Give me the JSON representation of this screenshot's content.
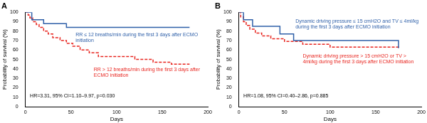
{
  "chart_data": [
    {
      "type": "line",
      "title": "A",
      "x_label": "Days",
      "y_label": "Probability of survival (%)",
      "xlim": [
        0,
        200
      ],
      "xticks": [
        0,
        50,
        100,
        150,
        200
      ],
      "ylim": [
        0,
        100
      ],
      "yticks": [
        0,
        10,
        20,
        30,
        40,
        50,
        60,
        70,
        80,
        90,
        100
      ],
      "grid": false,
      "annotations": [
        "HR=3.31, 95% CI=1.10–9.97, p=0.030"
      ],
      "series": [
        {
          "name": "RR ≤ 12 breaths/min during the first 3 days after ECMO initiation",
          "color": "#2e5fa8",
          "line_style": "solid",
          "x": [
            0,
            7,
            20,
            45,
            180
          ],
          "values": [
            100,
            92,
            88,
            84,
            84
          ]
        },
        {
          "name": "RR > 12 breaths/min during the first 3 days after ECMO initiation",
          "color": "#e8251f",
          "line_style": "dashed",
          "x": [
            0,
            3,
            5,
            8,
            12,
            15,
            20,
            25,
            30,
            38,
            45,
            52,
            60,
            70,
            80,
            100,
            120,
            140,
            160,
            180
          ],
          "values": [
            100,
            97,
            94,
            90,
            87,
            84,
            80,
            77,
            73,
            70,
            67,
            64,
            60,
            57,
            53,
            53,
            50,
            47,
            45,
            45
          ]
        }
      ]
    },
    {
      "type": "line",
      "title": "B",
      "x_label": "Days",
      "y_label": "Probability of survival (%)",
      "xlim": [
        0,
        200
      ],
      "xticks": [
        0,
        50,
        100,
        150,
        200
      ],
      "ylim": [
        0,
        100
      ],
      "yticks": [
        0,
        10,
        20,
        30,
        40,
        50,
        60,
        70,
        80,
        90,
        100
      ],
      "grid": false,
      "annotations": [
        "HR=1.08, 95% CI=0.40–2.86, p=0.885"
      ],
      "series": [
        {
          "name": "Dynamic driving pressure ≤ 15 cmH2O and TV ≤ 4ml/kg during the first 3 days after ECMO initiation",
          "color": "#2e5fa8",
          "line_style": "solid",
          "x": [
            0,
            5,
            15,
            45,
            60,
            175
          ],
          "values": [
            100,
            92,
            85,
            77,
            70,
            62
          ]
        },
        {
          "name": "Dynamic driving pressure > 15 cmH2O or TV > 4ml/kg during the first 3 days after ECMO initiation",
          "color": "#e8251f",
          "line_style": "dashed",
          "x": [
            0,
            2,
            5,
            8,
            12,
            18,
            25,
            35,
            50,
            70,
            100,
            175
          ],
          "values": [
            100,
            95,
            90,
            86,
            82,
            78,
            75,
            72,
            69,
            66,
            63,
            61
          ]
        }
      ]
    }
  ]
}
